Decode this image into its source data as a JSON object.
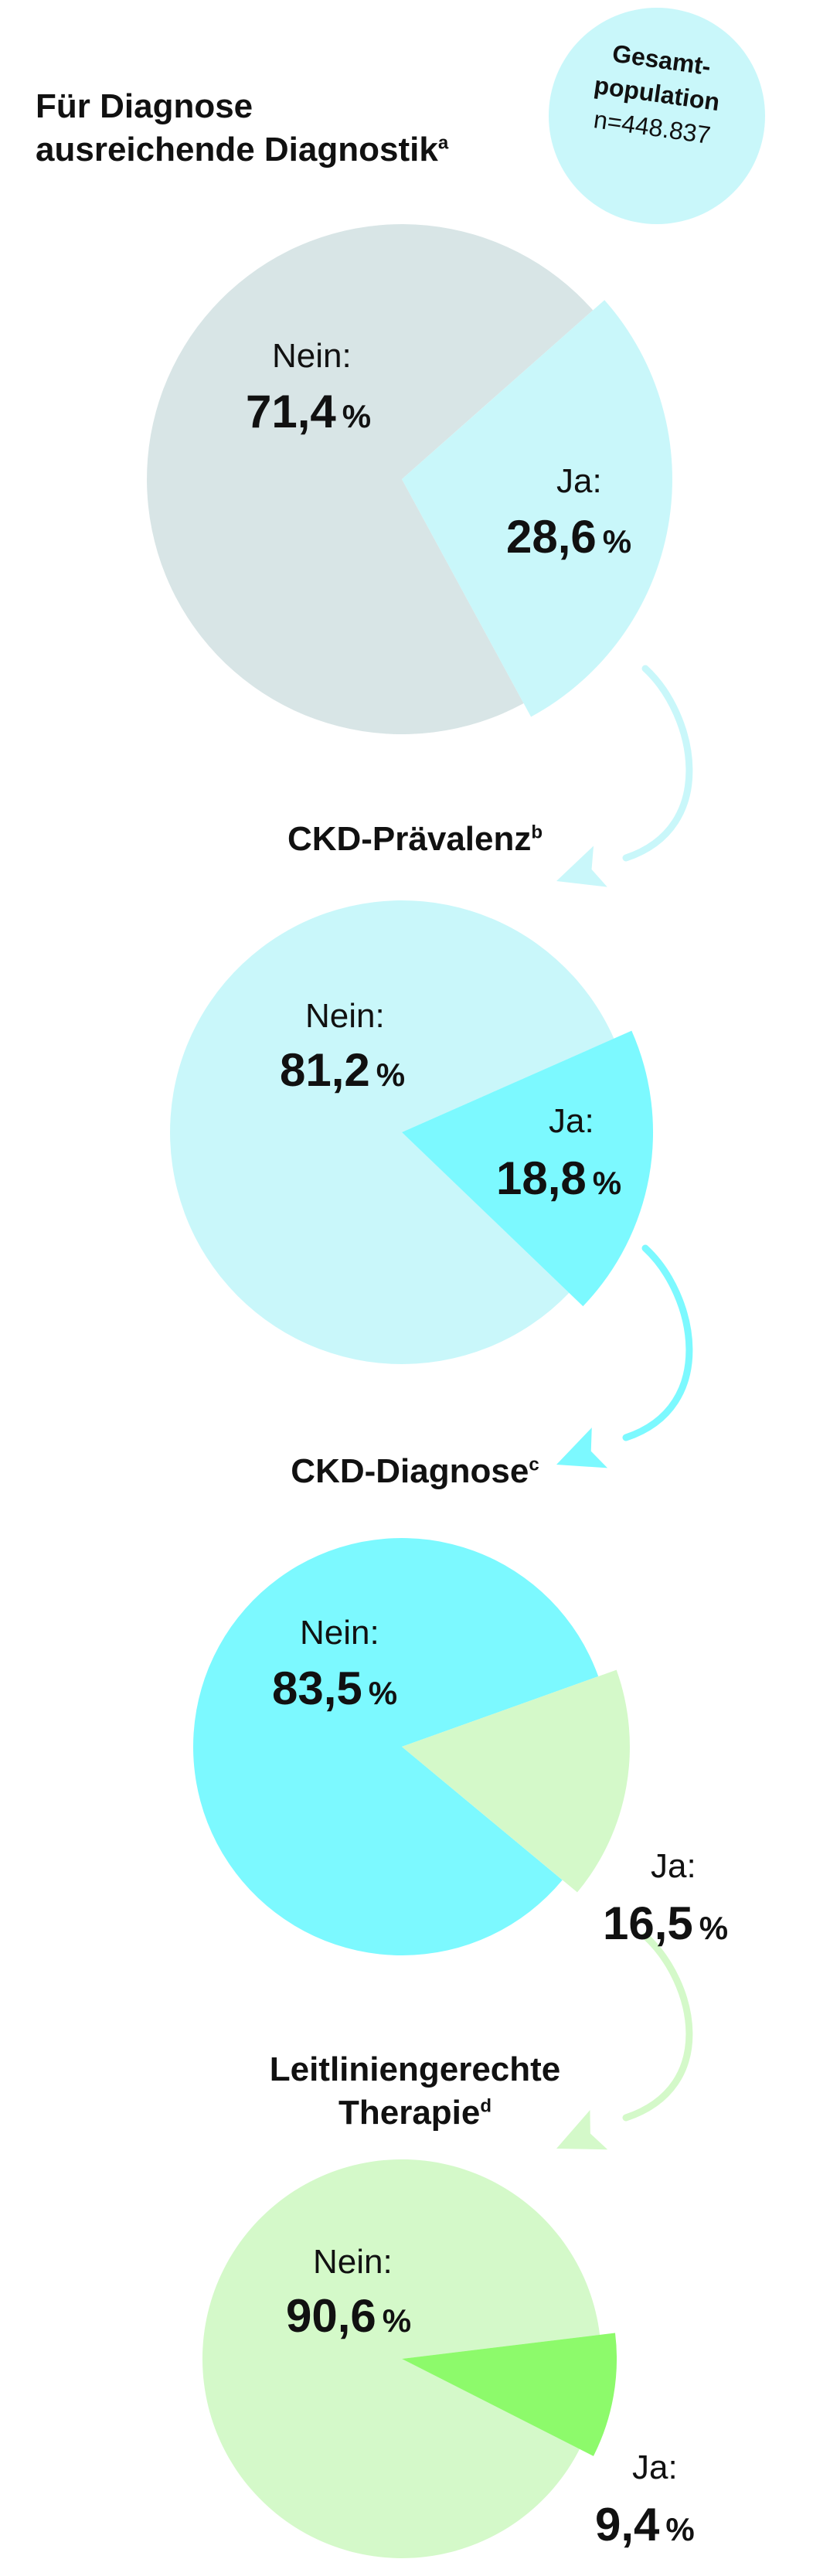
{
  "population": {
    "line1": "Gesamt-",
    "line2": "population",
    "n": "n=448.837"
  },
  "headings": {
    "h1_line1": "Für Diagnose",
    "h1_line2": "ausreichende Diagnostik",
    "h1_sup": "a",
    "h2": "CKD-Prävalenz",
    "h2_sup": "b",
    "h3": "CKD-Diagnose",
    "h3_sup": "c",
    "h4_line1": "Leitliniengerechte",
    "h4_line2": "Therapie",
    "h4_sup": "d"
  },
  "colors": {
    "grey": "#d8e5e6",
    "light_cyan": "#c9f7fa",
    "cyan": "#7cf9ff",
    "pale_green": "#d4f9c9",
    "green": "#8dfa6b",
    "arrow1": "#c9f7fa",
    "arrow2": "#7cf9ff",
    "arrow3": "#d4f9c9"
  },
  "chart_data": [
    {
      "type": "pie",
      "title": "Für Diagnose ausreichende Diagnostik",
      "slices": [
        {
          "label": "Nein:",
          "value": 71.4,
          "display": "71,4",
          "unit": "%",
          "color": "#d8e5e6"
        },
        {
          "label": "Ja:",
          "value": 28.6,
          "display": "28,6",
          "unit": "%",
          "color": "#c9f7fa",
          "exploded": true
        }
      ]
    },
    {
      "type": "pie",
      "title": "CKD-Prävalenz",
      "slices": [
        {
          "label": "Nein:",
          "value": 81.2,
          "display": "81,2",
          "unit": "%",
          "color": "#c9f7fa"
        },
        {
          "label": "Ja:",
          "value": 18.8,
          "display": "18,8",
          "unit": "%",
          "color": "#7cf9ff",
          "exploded": true
        }
      ]
    },
    {
      "type": "pie",
      "title": "CKD-Diagnose",
      "slices": [
        {
          "label": "Nein:",
          "value": 83.5,
          "display": "83,5",
          "unit": "%",
          "color": "#7cf9ff"
        },
        {
          "label": "Ja:",
          "value": 16.5,
          "display": "16,5",
          "unit": "%",
          "color": "#d4f9c9",
          "exploded": true
        }
      ]
    },
    {
      "type": "pie",
      "title": "Leitliniengerechte Therapie",
      "slices": [
        {
          "label": "Nein:",
          "value": 90.6,
          "display": "90,6",
          "unit": "%",
          "color": "#d4f9c9"
        },
        {
          "label": "Ja:",
          "value": 9.4,
          "display": "9,4",
          "unit": "%",
          "color": "#8dfa6b",
          "exploded": true
        }
      ]
    }
  ]
}
